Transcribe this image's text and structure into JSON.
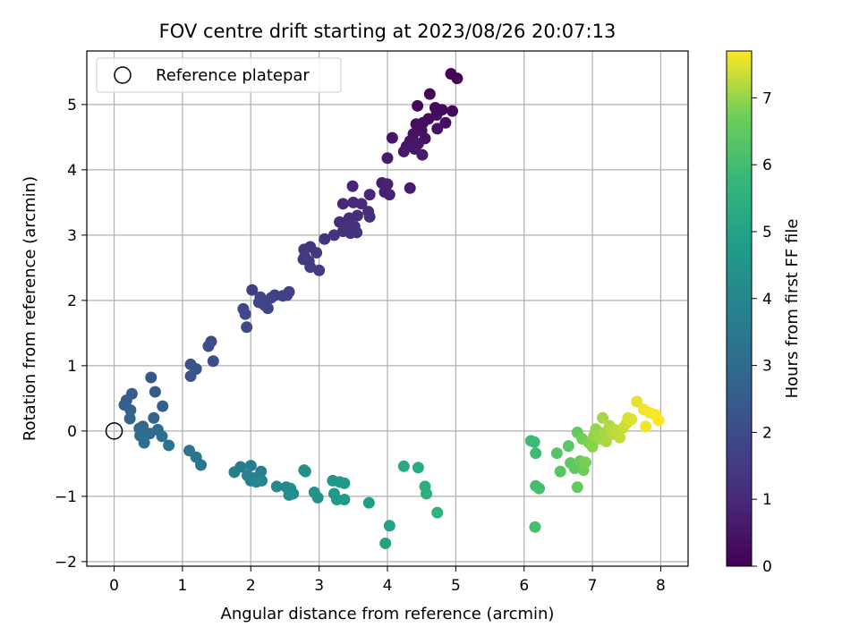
{
  "chart_data": {
    "type": "scatter",
    "title": "FOV centre drift starting at 2023/08/26 20:07:13",
    "xlabel": "Angular distance from reference (arcmin)",
    "ylabel": "Rotation from reference (arcmin)",
    "xlim": [
      -0.4,
      8.4
    ],
    "ylim": [
      -2.07,
      5.82
    ],
    "x_ticks": [
      0,
      1,
      2,
      3,
      4,
      5,
      6,
      7,
      8
    ],
    "y_ticks": [
      -2,
      -1,
      0,
      1,
      2,
      3,
      4,
      5
    ],
    "grid": true,
    "legend": {
      "placement": "top-left",
      "entries": [
        "Reference platepar"
      ]
    },
    "reference_point": {
      "x": 0,
      "y": 0,
      "marker": "hollow-circle"
    },
    "colorbar": {
      "label": "Hours from first FF file",
      "range": [
        0,
        7.7
      ],
      "ticks": [
        0,
        1,
        2,
        3,
        4,
        5,
        6,
        7
      ],
      "colormap": "viridis"
    },
    "points": [
      {
        "x": 4.93,
        "y": 5.47,
        "h": 0.05
      },
      {
        "x": 5.02,
        "y": 5.4,
        "h": 0.08
      },
      {
        "x": 4.62,
        "y": 5.16,
        "h": 0.12
      },
      {
        "x": 4.44,
        "y": 4.98,
        "h": 0.15
      },
      {
        "x": 4.7,
        "y": 4.95,
        "h": 0.18
      },
      {
        "x": 4.8,
        "y": 4.92,
        "h": 0.2
      },
      {
        "x": 4.95,
        "y": 4.9,
        "h": 0.22
      },
      {
        "x": 4.72,
        "y": 4.84,
        "h": 0.25
      },
      {
        "x": 4.6,
        "y": 4.78,
        "h": 0.28
      },
      {
        "x": 4.52,
        "y": 4.72,
        "h": 0.3
      },
      {
        "x": 4.42,
        "y": 4.7,
        "h": 0.33
      },
      {
        "x": 4.85,
        "y": 4.72,
        "h": 0.35
      },
      {
        "x": 4.5,
        "y": 4.6,
        "h": 0.38
      },
      {
        "x": 4.73,
        "y": 4.63,
        "h": 0.4
      },
      {
        "x": 4.38,
        "y": 4.55,
        "h": 0.42
      },
      {
        "x": 4.55,
        "y": 4.48,
        "h": 0.45
      },
      {
        "x": 4.33,
        "y": 4.44,
        "h": 0.48
      },
      {
        "x": 4.45,
        "y": 4.4,
        "h": 0.5
      },
      {
        "x": 4.07,
        "y": 4.49,
        "h": 0.52
      },
      {
        "x": 4.28,
        "y": 4.36,
        "h": 0.55
      },
      {
        "x": 4.4,
        "y": 4.32,
        "h": 0.58
      },
      {
        "x": 4.24,
        "y": 4.28,
        "h": 0.6
      },
      {
        "x": 4.51,
        "y": 4.23,
        "h": 0.62
      },
      {
        "x": 4.0,
        "y": 4.18,
        "h": 0.65
      },
      {
        "x": 4.33,
        "y": 3.72,
        "h": 0.7
      },
      {
        "x": 3.92,
        "y": 3.8,
        "h": 0.75
      },
      {
        "x": 4.0,
        "y": 3.78,
        "h": 0.8
      },
      {
        "x": 3.96,
        "y": 3.66,
        "h": 0.82
      },
      {
        "x": 4.03,
        "y": 3.62,
        "h": 0.85
      },
      {
        "x": 3.49,
        "y": 3.75,
        "h": 0.9
      },
      {
        "x": 3.74,
        "y": 3.62,
        "h": 0.95
      },
      {
        "x": 3.35,
        "y": 3.48,
        "h": 1.0
      },
      {
        "x": 3.5,
        "y": 3.5,
        "h": 1.02
      },
      {
        "x": 3.62,
        "y": 3.48,
        "h": 1.05
      },
      {
        "x": 3.72,
        "y": 3.36,
        "h": 1.08
      },
      {
        "x": 3.56,
        "y": 3.3,
        "h": 1.1
      },
      {
        "x": 3.44,
        "y": 3.26,
        "h": 1.12
      },
      {
        "x": 3.74,
        "y": 3.28,
        "h": 1.15
      },
      {
        "x": 3.3,
        "y": 3.2,
        "h": 1.18
      },
      {
        "x": 3.4,
        "y": 3.14,
        "h": 1.2
      },
      {
        "x": 3.52,
        "y": 3.13,
        "h": 1.22
      },
      {
        "x": 3.35,
        "y": 3.06,
        "h": 1.25
      },
      {
        "x": 3.46,
        "y": 3.03,
        "h": 1.28
      },
      {
        "x": 3.55,
        "y": 3.04,
        "h": 1.3
      },
      {
        "x": 3.22,
        "y": 3.0,
        "h": 1.32
      },
      {
        "x": 3.08,
        "y": 2.94,
        "h": 1.35
      },
      {
        "x": 2.87,
        "y": 2.82,
        "h": 1.4
      },
      {
        "x": 2.78,
        "y": 2.78,
        "h": 1.42
      },
      {
        "x": 2.96,
        "y": 2.73,
        "h": 1.45
      },
      {
        "x": 2.79,
        "y": 2.67,
        "h": 1.48
      },
      {
        "x": 2.77,
        "y": 2.63,
        "h": 1.5
      },
      {
        "x": 2.85,
        "y": 2.6,
        "h": 1.52
      },
      {
        "x": 2.87,
        "y": 2.51,
        "h": 1.55
      },
      {
        "x": 3.0,
        "y": 2.46,
        "h": 1.58
      },
      {
        "x": 2.02,
        "y": 2.16,
        "h": 1.62
      },
      {
        "x": 2.56,
        "y": 2.13,
        "h": 1.65
      },
      {
        "x": 2.35,
        "y": 2.08,
        "h": 1.68
      },
      {
        "x": 2.47,
        "y": 2.07,
        "h": 1.7
      },
      {
        "x": 2.53,
        "y": 2.08,
        "h": 1.72
      },
      {
        "x": 2.14,
        "y": 2.05,
        "h": 1.75
      },
      {
        "x": 2.3,
        "y": 2.04,
        "h": 1.78
      },
      {
        "x": 2.12,
        "y": 1.97,
        "h": 1.8
      },
      {
        "x": 2.2,
        "y": 1.93,
        "h": 1.82
      },
      {
        "x": 2.25,
        "y": 1.88,
        "h": 1.85
      },
      {
        "x": 1.89,
        "y": 1.87,
        "h": 1.88
      },
      {
        "x": 1.92,
        "y": 1.79,
        "h": 1.9
      },
      {
        "x": 1.94,
        "y": 1.59,
        "h": 1.95
      },
      {
        "x": 1.42,
        "y": 1.37,
        "h": 2.05
      },
      {
        "x": 1.38,
        "y": 1.3,
        "h": 2.1
      },
      {
        "x": 1.45,
        "y": 1.07,
        "h": 2.15
      },
      {
        "x": 1.12,
        "y": 1.02,
        "h": 2.2
      },
      {
        "x": 1.2,
        "y": 0.95,
        "h": 2.25
      },
      {
        "x": 1.12,
        "y": 0.84,
        "h": 2.3
      },
      {
        "x": 0.54,
        "y": 0.82,
        "h": 2.4
      },
      {
        "x": 0.6,
        "y": 0.6,
        "h": 2.45
      },
      {
        "x": 0.26,
        "y": 0.57,
        "h": 2.5
      },
      {
        "x": 0.18,
        "y": 0.47,
        "h": 2.55
      },
      {
        "x": 0.15,
        "y": 0.4,
        "h": 2.6
      },
      {
        "x": 0.71,
        "y": 0.38,
        "h": 2.65
      },
      {
        "x": 0.24,
        "y": 0.32,
        "h": 2.7
      },
      {
        "x": 0.58,
        "y": 0.2,
        "h": 2.75
      },
      {
        "x": 0.23,
        "y": 0.19,
        "h": 2.8
      },
      {
        "x": 0.42,
        "y": 0.07,
        "h": 2.85
      },
      {
        "x": 0.37,
        "y": 0.04,
        "h": 2.9
      },
      {
        "x": 0.64,
        "y": 0.02,
        "h": 2.95
      },
      {
        "x": 0.45,
        "y": -0.02,
        "h": 3.0
      },
      {
        "x": 0.52,
        "y": -0.04,
        "h": 3.05
      },
      {
        "x": 0.38,
        "y": -0.07,
        "h": 3.1
      },
      {
        "x": 0.7,
        "y": -0.08,
        "h": 3.15
      },
      {
        "x": 0.44,
        "y": -0.18,
        "h": 3.2
      },
      {
        "x": 0.8,
        "y": -0.22,
        "h": 3.25
      },
      {
        "x": 1.1,
        "y": -0.3,
        "h": 3.35
      },
      {
        "x": 1.2,
        "y": -0.4,
        "h": 3.4
      },
      {
        "x": 1.27,
        "y": -0.52,
        "h": 3.45
      },
      {
        "x": 1.85,
        "y": -0.55,
        "h": 3.6
      },
      {
        "x": 2.0,
        "y": -0.53,
        "h": 3.65
      },
      {
        "x": 2.15,
        "y": -0.62,
        "h": 3.7
      },
      {
        "x": 1.76,
        "y": -0.63,
        "h": 3.75
      },
      {
        "x": 1.95,
        "y": -0.68,
        "h": 3.8
      },
      {
        "x": 2.05,
        "y": -0.72,
        "h": 3.85
      },
      {
        "x": 2.0,
        "y": -0.76,
        "h": 3.9
      },
      {
        "x": 2.16,
        "y": -0.76,
        "h": 3.95
      },
      {
        "x": 2.08,
        "y": -0.78,
        "h": 4.0
      },
      {
        "x": 2.38,
        "y": -0.85,
        "h": 4.05
      },
      {
        "x": 2.52,
        "y": -0.86,
        "h": 4.1
      },
      {
        "x": 2.58,
        "y": -0.88,
        "h": 4.15
      },
      {
        "x": 2.62,
        "y": -0.96,
        "h": 4.2
      },
      {
        "x": 2.56,
        "y": -0.98,
        "h": 4.25
      },
      {
        "x": 2.78,
        "y": -0.6,
        "h": 4.3
      },
      {
        "x": 2.8,
        "y": -0.62,
        "h": 4.35
      },
      {
        "x": 2.93,
        "y": -0.94,
        "h": 4.4
      },
      {
        "x": 2.98,
        "y": -1.02,
        "h": 4.45
      },
      {
        "x": 3.2,
        "y": -0.76,
        "h": 4.5
      },
      {
        "x": 3.3,
        "y": -0.78,
        "h": 4.55
      },
      {
        "x": 3.37,
        "y": -0.8,
        "h": 4.6
      },
      {
        "x": 3.22,
        "y": -0.96,
        "h": 4.65
      },
      {
        "x": 3.26,
        "y": -1.05,
        "h": 4.7
      },
      {
        "x": 3.37,
        "y": -1.05,
        "h": 4.75
      },
      {
        "x": 3.73,
        "y": -1.1,
        "h": 4.85
      },
      {
        "x": 4.03,
        "y": -1.45,
        "h": 4.95
      },
      {
        "x": 3.97,
        "y": -1.72,
        "h": 5.0
      },
      {
        "x": 4.24,
        "y": -0.54,
        "h": 5.2
      },
      {
        "x": 4.45,
        "y": -0.56,
        "h": 5.3
      },
      {
        "x": 4.55,
        "y": -0.85,
        "h": 5.4
      },
      {
        "x": 4.57,
        "y": -0.96,
        "h": 5.45
      },
      {
        "x": 4.73,
        "y": -1.25,
        "h": 5.55
      },
      {
        "x": 6.1,
        "y": -0.15,
        "h": 5.85
      },
      {
        "x": 6.15,
        "y": -0.17,
        "h": 5.9
      },
      {
        "x": 6.17,
        "y": -0.34,
        "h": 5.95
      },
      {
        "x": 6.17,
        "y": -0.84,
        "h": 6.0
      },
      {
        "x": 6.22,
        "y": -0.88,
        "h": 6.05
      },
      {
        "x": 6.16,
        "y": -1.47,
        "h": 6.1
      },
      {
        "x": 6.48,
        "y": -0.34,
        "h": 6.3
      },
      {
        "x": 6.53,
        "y": -0.62,
        "h": 6.35
      },
      {
        "x": 6.65,
        "y": -0.23,
        "h": 6.4
      },
      {
        "x": 6.68,
        "y": -0.49,
        "h": 6.45
      },
      {
        "x": 6.74,
        "y": -0.57,
        "h": 6.5
      },
      {
        "x": 6.78,
        "y": -0.86,
        "h": 6.55
      },
      {
        "x": 6.78,
        "y": -0.02,
        "h": 6.6
      },
      {
        "x": 6.82,
        "y": -0.46,
        "h": 6.65
      },
      {
        "x": 6.87,
        "y": -0.6,
        "h": 6.7
      },
      {
        "x": 6.85,
        "y": -0.12,
        "h": 6.75
      },
      {
        "x": 6.9,
        "y": -0.48,
        "h": 6.8
      },
      {
        "x": 6.95,
        "y": -0.18,
        "h": 6.85
      },
      {
        "x": 7.0,
        "y": -0.24,
        "h": 6.9
      },
      {
        "x": 7.02,
        "y": -0.08,
        "h": 6.95
      },
      {
        "x": 7.05,
        "y": 0.03,
        "h": 7.0
      },
      {
        "x": 7.1,
        "y": -0.12,
        "h": 7.05
      },
      {
        "x": 7.15,
        "y": 0.2,
        "h": 7.1
      },
      {
        "x": 7.18,
        "y": -0.02,
        "h": 7.12
      },
      {
        "x": 7.2,
        "y": -0.16,
        "h": 7.15
      },
      {
        "x": 7.25,
        "y": 0.08,
        "h": 7.18
      },
      {
        "x": 7.28,
        "y": -0.05,
        "h": 7.2
      },
      {
        "x": 7.32,
        "y": 0.02,
        "h": 7.25
      },
      {
        "x": 7.35,
        "y": -0.04,
        "h": 7.28
      },
      {
        "x": 7.4,
        "y": -0.1,
        "h": 7.3
      },
      {
        "x": 7.45,
        "y": 0.05,
        "h": 7.35
      },
      {
        "x": 7.5,
        "y": 0.12,
        "h": 7.4
      },
      {
        "x": 7.52,
        "y": 0.2,
        "h": 7.45
      },
      {
        "x": 7.57,
        "y": 0.18,
        "h": 7.48
      },
      {
        "x": 7.65,
        "y": 0.45,
        "h": 7.55
      },
      {
        "x": 7.75,
        "y": 0.33,
        "h": 7.6
      },
      {
        "x": 7.78,
        "y": 0.07,
        "h": 7.62
      },
      {
        "x": 7.84,
        "y": 0.28,
        "h": 7.65
      },
      {
        "x": 7.92,
        "y": 0.25,
        "h": 7.68
      },
      {
        "x": 7.97,
        "y": 0.16,
        "h": 7.7
      }
    ]
  }
}
